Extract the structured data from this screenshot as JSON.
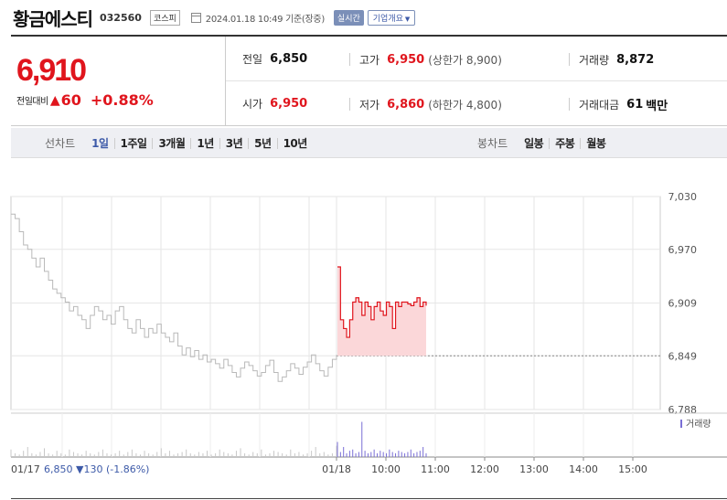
{
  "header": {
    "name": "황금에스티",
    "code": "032560",
    "market": "코스피",
    "timestamp": "2024.01.18 10:49 기준(장중)",
    "realtime": "실시간",
    "company": "기업개요"
  },
  "price": {
    "current": "6,910",
    "diff_label": "전일대비",
    "diff_arrow": "▲",
    "diff_value": "60",
    "diff_rate": "+0.88%"
  },
  "info": {
    "prev_label": "전일",
    "prev_value": "6,850",
    "high_label": "고가",
    "high_value": "6,950",
    "upper_limit": "(상한가 8,900)",
    "volume_label": "거래량",
    "volume_value": "8,872",
    "open_label": "시가",
    "open_value": "6,950",
    "low_label": "저가",
    "low_value": "6,860",
    "lower_limit": "(하한가 4,800)",
    "amount_label": "거래대금",
    "amount_value": "61",
    "amount_unit": "백만"
  },
  "tabs": {
    "line_title": "선차트",
    "line_periods": [
      "1일",
      "1주일",
      "3개월",
      "1년",
      "3년",
      "5년",
      "10년"
    ],
    "active": "1일",
    "candle_title": "봉차트",
    "candle_periods": [
      "일봉",
      "주봉",
      "월봉"
    ]
  },
  "chart_data": {
    "type": "line",
    "ylim": [
      6788,
      7030
    ],
    "y_ticks": [
      "7,030",
      "6,970",
      "6,909",
      "6,849",
      "6,788"
    ],
    "x_ticks": [
      "01/18",
      "10:00",
      "11:00",
      "12:00",
      "13:00",
      "14:00",
      "15:00"
    ],
    "prev_day_label": "01/17",
    "prev_day_summary": {
      "close": "6,850",
      "arrow": "▼",
      "change": "130",
      "rate": "(-1.86%)"
    },
    "volume_legend": "거래량",
    "reference_price": 6849,
    "prev_day_prices": [
      7010,
      7005,
      6990,
      6975,
      6970,
      6960,
      6950,
      6960,
      6945,
      6935,
      6925,
      6920,
      6915,
      6910,
      6900,
      6905,
      6895,
      6890,
      6880,
      6895,
      6905,
      6900,
      6890,
      6895,
      6885,
      6900,
      6905,
      6890,
      6880,
      6875,
      6890,
      6880,
      6870,
      6880,
      6875,
      6885,
      6875,
      6870,
      6865,
      6875,
      6860,
      6850,
      6858,
      6848,
      6855,
      6845,
      6850,
      6842,
      6845,
      6840,
      6835,
      6845,
      6838,
      6830,
      6825,
      6835,
      6842,
      6838,
      6832,
      6826,
      6830,
      6838,
      6844,
      6830,
      6820,
      6825,
      6832,
      6840,
      6835,
      6828,
      6836,
      6842,
      6850,
      6840,
      6832,
      6826,
      6836,
      6845,
      6850
    ],
    "today_prices": [
      6950,
      6890,
      6880,
      6870,
      6890,
      6910,
      6915,
      6910,
      6895,
      6910,
      6905,
      6890,
      6905,
      6910,
      6900,
      6895,
      6910,
      6905,
      6880,
      6910,
      6905,
      6910,
      6910,
      6908,
      6906,
      6910,
      6915,
      6905,
      6910,
      6906
    ],
    "prev_day_volume": [
      6,
      3,
      2,
      5,
      8,
      3,
      2,
      4,
      7,
      3,
      2,
      5,
      3,
      2,
      6,
      4,
      3,
      2,
      5,
      3,
      2,
      4,
      6,
      3,
      2,
      3,
      5,
      2,
      4,
      6,
      3,
      2,
      5,
      3,
      2,
      4,
      7,
      3,
      5,
      2,
      3,
      4,
      6,
      3,
      2,
      4,
      3,
      5,
      2,
      3,
      6,
      4,
      3,
      2,
      5,
      7,
      3,
      2,
      4,
      3,
      6,
      2,
      3,
      5,
      4,
      3,
      2,
      6,
      3,
      4,
      2,
      3,
      5,
      8,
      3,
      4,
      2,
      3,
      9
    ],
    "today_volume": [
      12,
      4,
      8,
      3,
      5,
      6,
      3,
      4,
      28,
      5,
      3,
      4,
      6,
      3,
      5,
      4,
      3,
      6,
      4,
      3,
      5,
      4,
      3,
      4,
      6,
      3,
      4,
      5,
      8,
      3
    ]
  }
}
